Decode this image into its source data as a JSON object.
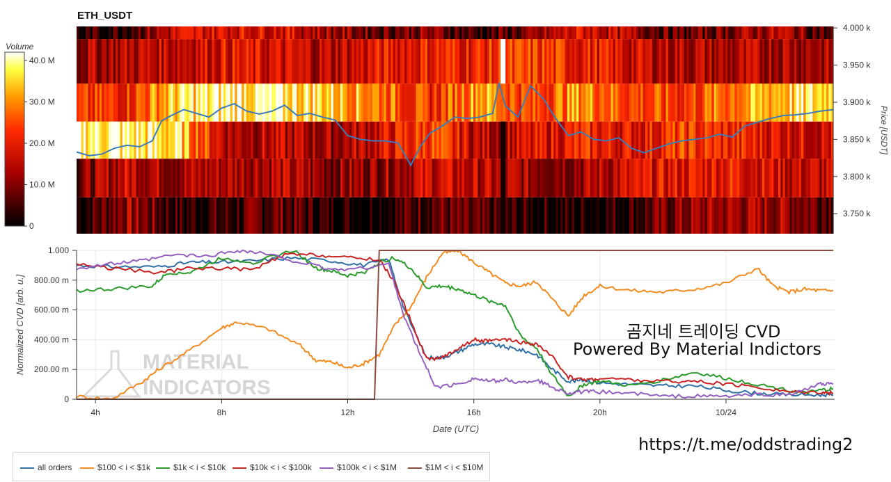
{
  "title": "ETH_USDT",
  "colors": {
    "all_orders": "#2f6fa6",
    "c100_1k": "#f28a1f",
    "c1k_10k": "#2a9a2a",
    "c10k_100k": "#c82323",
    "c100k_1m": "#9460bf",
    "c1m_10m": "#8a4a3c"
  },
  "chart_data": [
    {
      "type": "heatmap",
      "title": "ETH_USDT",
      "colorbar": {
        "label": "Volume",
        "ticks": [
          "0",
          "10.0 M",
          "20.0 M",
          "30.0 M",
          "40.0 M"
        ],
        "range": [
          0,
          42000000
        ]
      },
      "ylabel": "Price [USDT]",
      "yticks": [
        "3.750 k",
        "3.800 k",
        "3.850 k",
        "3.900 k",
        "3.950 k",
        "4.000 k"
      ],
      "ylim": [
        3723,
        4002
      ],
      "xlim": [
        3.4,
        27.4
      ],
      "price_bands": [
        3723,
        3772,
        3824,
        3874,
        3925,
        3985,
        4002
      ],
      "band_level_keys": [
        [
          0.05,
          0.3,
          0.08,
          0.1,
          0.2,
          0.05,
          0.05,
          0.2,
          0.1,
          0.06,
          0.05,
          0.1,
          0.25,
          0.3,
          0.3,
          0.2
        ],
        [
          0.2,
          0.4,
          0.3,
          0.35,
          0.35,
          0.25,
          0.3,
          0.4,
          0.35,
          0.3,
          0.3,
          0.4,
          0.45,
          0.5,
          0.4,
          0.35
        ],
        [
          0.95,
          0.9,
          0.85,
          0.35,
          0.35,
          0.3,
          0.4,
          0.6,
          0.35,
          0.4,
          0.5,
          0.45,
          0.55,
          0.5,
          0.45,
          0.4
        ],
        [
          0.5,
          0.55,
          0.85,
          0.92,
          0.9,
          0.85,
          0.7,
          0.5,
          0.8,
          0.55,
          0.75,
          0.6,
          0.55,
          0.7,
          0.82,
          0.88
        ],
        [
          0.3,
          0.35,
          0.4,
          0.45,
          0.4,
          0.35,
          0.45,
          0.5,
          0.5,
          0.55,
          0.5,
          0.4,
          0.35,
          0.3,
          0.35,
          0.3
        ],
        [
          0.05,
          0.15,
          0.4,
          0.45,
          0.45,
          0.3,
          0.2,
          0.25,
          0.1,
          0.2,
          0.45,
          0.3,
          0.15,
          0.25,
          0.35,
          0.1
        ]
      ],
      "price_series": {
        "name": "Price",
        "x": [
          3.4,
          3.8,
          4.2,
          4.6,
          5.0,
          5.4,
          5.8,
          6.1,
          6.4,
          6.8,
          7.2,
          7.6,
          8.0,
          8.4,
          8.8,
          9.2,
          9.6,
          10.0,
          10.4,
          10.8,
          11.2,
          11.6,
          12.0,
          12.4,
          12.8,
          13.2,
          13.6,
          14.0,
          14.3,
          14.6,
          15.0,
          15.4,
          15.8,
          16.2,
          16.6,
          16.8,
          17.0,
          17.4,
          17.8,
          18.2,
          18.6,
          19.0,
          19.4,
          19.8,
          20.2,
          20.6,
          21.0,
          21.4,
          21.8,
          22.2,
          22.6,
          23.0,
          23.4,
          23.8,
          24.2,
          24.6,
          25.0,
          25.4,
          25.8,
          26.2,
          26.6,
          27.0,
          27.4
        ],
        "values": [
          3833,
          3828,
          3830,
          3838,
          3842,
          3840,
          3848,
          3875,
          3882,
          3890,
          3885,
          3880,
          3892,
          3898,
          3888,
          3884,
          3888,
          3896,
          3882,
          3885,
          3880,
          3876,
          3855,
          3850,
          3848,
          3848,
          3845,
          3815,
          3840,
          3858,
          3868,
          3880,
          3878,
          3880,
          3885,
          3926,
          3895,
          3880,
          3922,
          3905,
          3878,
          3855,
          3860,
          3850,
          3848,
          3852,
          3838,
          3832,
          3838,
          3844,
          3848,
          3850,
          3852,
          3857,
          3853,
          3868,
          3873,
          3878,
          3882,
          3883,
          3885,
          3888,
          3890
        ]
      }
    },
    {
      "type": "line",
      "xlabel": "Date (UTC)",
      "ylabel": "Normalized CVD [arb. u.]",
      "xticks": [
        "4h",
        "8h",
        "12h",
        "16h",
        "20h",
        "10/24"
      ],
      "yticks": [
        "0",
        "200.00 m",
        "400.00 m",
        "600.00 m",
        "800.00 m",
        "1.000"
      ],
      "xlim": [
        3.4,
        27.4
      ],
      "ylim": [
        0,
        1.0
      ],
      "series": [
        {
          "name": "all orders",
          "key": "all_orders",
          "x": [
            3.4,
            4.5,
            6,
            7,
            8,
            9,
            10.2,
            11.5,
            12.5,
            13.3,
            13.8,
            14.5,
            15,
            15.5,
            16,
            16.5,
            17,
            17.5,
            18,
            18.5,
            19,
            19.5,
            20,
            21,
            22,
            23,
            24,
            25,
            26,
            27,
            27.4
          ],
          "values": [
            0.9,
            0.89,
            0.89,
            0.92,
            0.92,
            0.93,
            0.95,
            0.93,
            0.9,
            0.94,
            0.6,
            0.28,
            0.28,
            0.32,
            0.37,
            0.37,
            0.35,
            0.33,
            0.3,
            0.2,
            0.12,
            0.13,
            0.11,
            0.1,
            0.09,
            0.09,
            0.06,
            0.04,
            0.03,
            0.03,
            0.03
          ]
        },
        {
          "name": "$100 < i < $1k",
          "key": "c100_1k",
          "x": [
            3.4,
            4.5,
            5.5,
            6,
            7,
            8,
            8.5,
            9.5,
            10.5,
            11,
            11.5,
            12,
            12.5,
            13,
            13.5,
            14,
            14.5,
            15,
            15.5,
            16,
            16.5,
            17,
            17.5,
            18,
            18.5,
            19,
            19.5,
            20,
            21,
            22,
            23,
            24,
            25,
            25.5,
            26,
            26.5,
            27,
            27.4
          ],
          "values": [
            0.02,
            0.0,
            0.12,
            0.2,
            0.33,
            0.48,
            0.52,
            0.47,
            0.36,
            0.26,
            0.25,
            0.21,
            0.24,
            0.3,
            0.5,
            0.62,
            0.82,
            0.98,
            1.0,
            0.92,
            0.85,
            0.78,
            0.76,
            0.79,
            0.67,
            0.56,
            0.7,
            0.76,
            0.73,
            0.72,
            0.74,
            0.78,
            0.88,
            0.76,
            0.72,
            0.74,
            0.73,
            0.73
          ]
        },
        {
          "name": "$1k < i < $10k",
          "key": "c1k_10k",
          "x": [
            3.4,
            4.5,
            5.8,
            6.3,
            7,
            8,
            9,
            10.3,
            11,
            11.5,
            12,
            12.5,
            13,
            13.5,
            14,
            14.5,
            15,
            15.5,
            16,
            16.5,
            17,
            17.5,
            18,
            18.5,
            19,
            19.5,
            20,
            21,
            22,
            23,
            24,
            25,
            26,
            26.5,
            27,
            27.4
          ],
          "values": [
            0.73,
            0.74,
            0.76,
            0.85,
            0.85,
            0.95,
            0.92,
            1.0,
            0.88,
            0.86,
            0.83,
            0.85,
            0.92,
            0.95,
            0.88,
            0.75,
            0.76,
            0.74,
            0.7,
            0.66,
            0.63,
            0.42,
            0.34,
            0.16,
            0.02,
            0.1,
            0.12,
            0.09,
            0.13,
            0.18,
            0.14,
            0.1,
            0.06,
            0.04,
            0.06,
            0.07
          ]
        },
        {
          "name": "$10k < i < $100k",
          "key": "c10k_100k",
          "x": [
            3.4,
            4.5,
            6,
            7,
            8,
            9,
            10,
            11,
            12,
            13,
            13.5,
            14,
            14.5,
            15,
            15.5,
            16,
            16.5,
            17,
            17.5,
            18,
            18.5,
            19,
            19.5,
            20,
            21,
            22,
            23,
            24,
            25,
            26,
            27,
            27.4
          ],
          "values": [
            0.91,
            0.88,
            0.85,
            0.88,
            0.88,
            0.87,
            0.97,
            0.97,
            0.95,
            0.94,
            0.78,
            0.53,
            0.27,
            0.28,
            0.34,
            0.4,
            0.39,
            0.4,
            0.38,
            0.37,
            0.28,
            0.15,
            0.13,
            0.14,
            0.13,
            0.12,
            0.12,
            0.1,
            0.08,
            0.05,
            0.05,
            0.04
          ]
        },
        {
          "name": "$100k < i < $1M",
          "key": "c100k_1m",
          "x": [
            3.4,
            4.5,
            5.5,
            6.5,
            7.5,
            8.5,
            9.3,
            10.5,
            11.5,
            12.5,
            13.3,
            13.8,
            14.3,
            14.8,
            15.5,
            16,
            16.5,
            17,
            17.5,
            18,
            18.5,
            19,
            19.5,
            20,
            21,
            22,
            23,
            24,
            25,
            26,
            27,
            27.4
          ],
          "values": [
            0.88,
            0.91,
            0.93,
            0.97,
            0.96,
            1.0,
            0.98,
            0.92,
            0.87,
            0.88,
            0.91,
            0.55,
            0.3,
            0.08,
            0.1,
            0.14,
            0.12,
            0.13,
            0.11,
            0.13,
            0.08,
            0.04,
            0.05,
            0.05,
            0.04,
            0.02,
            0.02,
            0.02,
            0.03,
            0.03,
            0.1,
            0.1
          ]
        },
        {
          "name": "$1M < i < $10M",
          "key": "c1m_10m",
          "x": [
            3.4,
            12.85,
            13.0,
            13.05,
            27.4
          ],
          "values": [
            0.0,
            0.0,
            1.0,
            1.0,
            1.0
          ]
        }
      ]
    }
  ],
  "watermark": {
    "line1": "MATERIAL",
    "line2": "INDICATORS"
  },
  "overlay": {
    "korean_title": "곰지네 트레이딩 CVD",
    "powered_by": "Powered By Material Indictors",
    "link": "https://t.me/oddstrading2"
  }
}
